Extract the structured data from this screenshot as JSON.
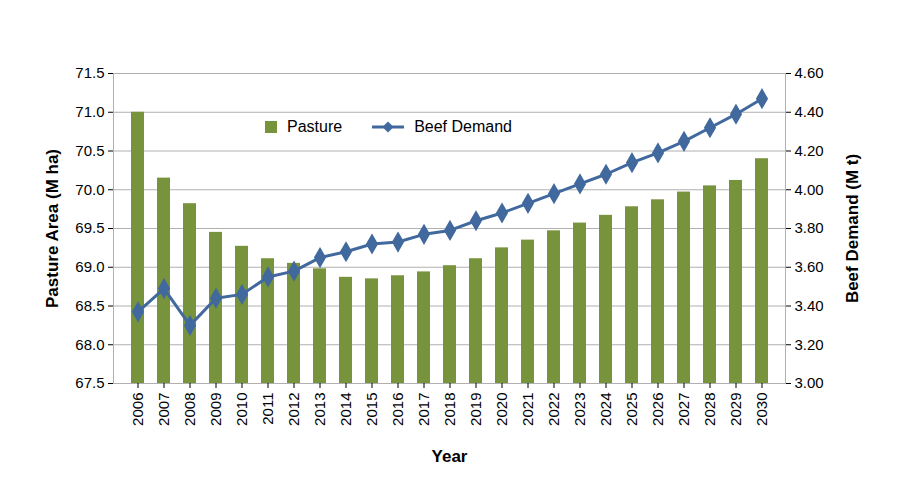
{
  "chart_data": {
    "type": "bar",
    "x_label": "Year",
    "y_label": "Pasture Area (M ha)",
    "y2_label": "Beef Demand (M t)",
    "categories": [
      "2006",
      "2007",
      "2008",
      "2009",
      "2010",
      "2011",
      "2012",
      "2013",
      "2014",
      "2015",
      "2016",
      "2017",
      "2018",
      "2019",
      "2020",
      "2021",
      "2022",
      "2023",
      "2024",
      "2025",
      "2026",
      "2027",
      "2028",
      "2029",
      "2030"
    ],
    "series": [
      {
        "name": "Pasture",
        "type": "bar",
        "color": "#77933c",
        "values": [
          71.0,
          70.15,
          69.82,
          69.45,
          69.27,
          69.11,
          69.05,
          68.98,
          68.87,
          68.85,
          68.89,
          68.94,
          69.02,
          69.11,
          69.25,
          69.35,
          69.47,
          69.57,
          69.67,
          69.78,
          69.87,
          69.97,
          70.05,
          70.12,
          70.4
        ]
      },
      {
        "name": "Beef Demand",
        "type": "line",
        "axis": "y2",
        "color": "#41699e",
        "marker": "diamond",
        "values": [
          3.37,
          3.49,
          3.3,
          3.44,
          3.46,
          3.55,
          3.58,
          3.65,
          3.68,
          3.72,
          3.73,
          3.77,
          3.79,
          3.84,
          3.88,
          3.93,
          3.98,
          4.03,
          4.08,
          4.14,
          4.19,
          4.25,
          4.32,
          4.39,
          4.47
        ]
      }
    ],
    "ylim": [
      67.5,
      71.5
    ],
    "yticks": [
      67.5,
      {
        "value": 68,
        "label": "68.0"
      },
      68.5,
      {
        "value": 69,
        "label": "69.0"
      },
      69.5,
      {
        "value": 70,
        "label": "70.0"
      },
      70.5,
      {
        "value": 71,
        "label": "71.0"
      },
      71.5
    ],
    "y2lim": [
      3,
      4.6
    ],
    "y2ticks": [
      {
        "value": 3,
        "label": "3.00"
      },
      {
        "value": 3.2,
        "label": "3.20"
      },
      {
        "value": 3.4,
        "label": "3.40"
      },
      {
        "value": 3.6,
        "label": "3.60"
      },
      {
        "value": 3.8,
        "label": "3.80"
      },
      {
        "value": 4,
        "label": "4.00"
      },
      {
        "value": 4.2,
        "label": "4.20"
      },
      {
        "value": 4.4,
        "label": "4.40"
      },
      {
        "value": 4.6,
        "label": "4.60"
      }
    ],
    "grid": true,
    "legend": "top"
  }
}
